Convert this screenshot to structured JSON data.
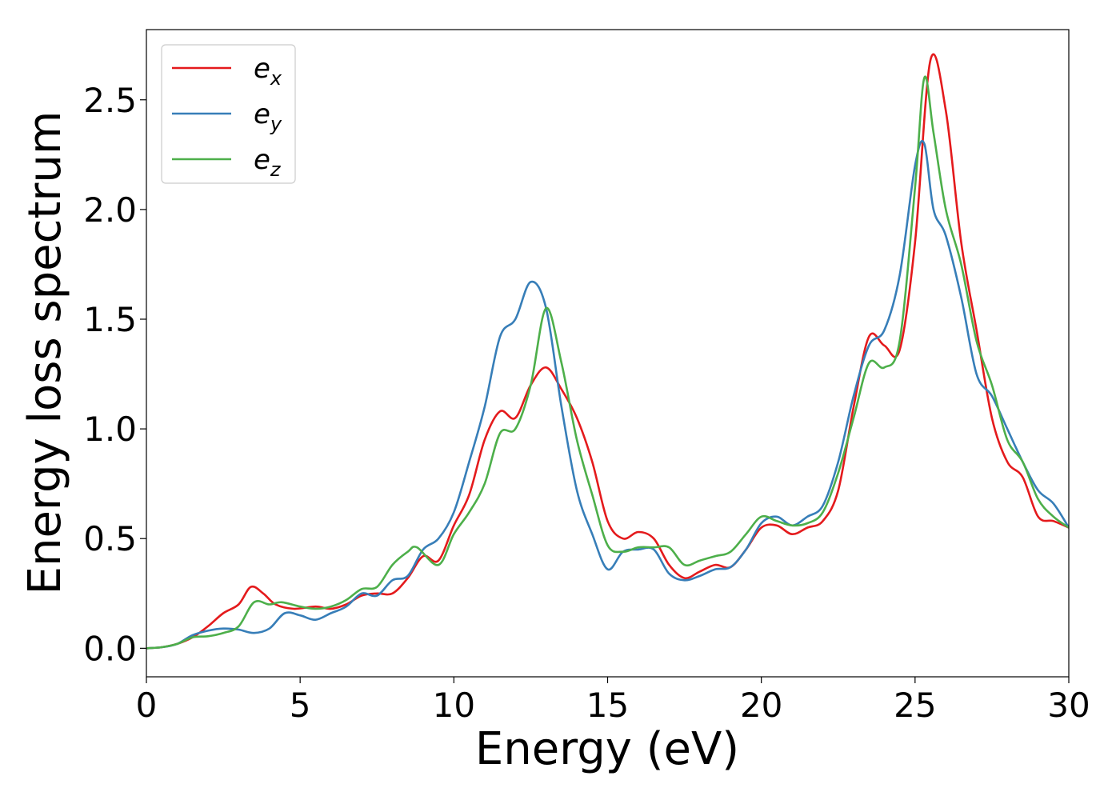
{
  "chart_data": {
    "type": "line",
    "xlabel": "Energy (eV)",
    "ylabel": "Energy loss spectrum",
    "xlim": [
      0,
      30
    ],
    "ylim": [
      -0.13,
      2.82
    ],
    "xticks": [
      0,
      5,
      10,
      15,
      20,
      25,
      30
    ],
    "xtick_labels": [
      "0",
      "5",
      "10",
      "15",
      "20",
      "25",
      "30"
    ],
    "yticks": [
      0.0,
      0.5,
      1.0,
      1.5,
      2.0,
      2.5
    ],
    "ytick_labels": [
      "0.0",
      "0.5",
      "1.0",
      "1.5",
      "2.0",
      "2.5"
    ],
    "grid": false,
    "legend_position": "upper-left",
    "series": [
      {
        "name": "e_x",
        "legend_base": "e",
        "legend_sub": "x",
        "color": "#e41a1c",
        "points": [
          [
            0,
            0.0
          ],
          [
            0.5,
            0.005
          ],
          [
            1,
            0.02
          ],
          [
            1.5,
            0.05
          ],
          [
            2,
            0.1
          ],
          [
            2.5,
            0.16
          ],
          [
            3,
            0.2
          ],
          [
            3.4,
            0.28
          ],
          [
            3.8,
            0.25
          ],
          [
            4.2,
            0.2
          ],
          [
            4.8,
            0.18
          ],
          [
            5.5,
            0.19
          ],
          [
            6,
            0.18
          ],
          [
            6.5,
            0.2
          ],
          [
            7,
            0.24
          ],
          [
            7.5,
            0.25
          ],
          [
            8,
            0.25
          ],
          [
            8.5,
            0.32
          ],
          [
            9,
            0.42
          ],
          [
            9.5,
            0.4
          ],
          [
            10,
            0.56
          ],
          [
            10.5,
            0.7
          ],
          [
            11,
            0.95
          ],
          [
            11.5,
            1.08
          ],
          [
            12,
            1.05
          ],
          [
            12.5,
            1.2
          ],
          [
            13,
            1.28
          ],
          [
            13.5,
            1.18
          ],
          [
            14,
            1.05
          ],
          [
            14.5,
            0.85
          ],
          [
            15,
            0.58
          ],
          [
            15.5,
            0.5
          ],
          [
            16,
            0.53
          ],
          [
            16.5,
            0.5
          ],
          [
            17,
            0.38
          ],
          [
            17.5,
            0.32
          ],
          [
            18,
            0.35
          ],
          [
            18.5,
            0.38
          ],
          [
            19,
            0.37
          ],
          [
            19.5,
            0.45
          ],
          [
            20,
            0.55
          ],
          [
            20.5,
            0.56
          ],
          [
            21,
            0.52
          ],
          [
            21.5,
            0.55
          ],
          [
            22,
            0.58
          ],
          [
            22.5,
            0.72
          ],
          [
            23,
            1.1
          ],
          [
            23.5,
            1.42
          ],
          [
            24,
            1.38
          ],
          [
            24.5,
            1.36
          ],
          [
            25,
            1.85
          ],
          [
            25.5,
            2.68
          ],
          [
            26,
            2.45
          ],
          [
            26.5,
            1.85
          ],
          [
            27,
            1.45
          ],
          [
            27.5,
            1.05
          ],
          [
            28,
            0.85
          ],
          [
            28.5,
            0.78
          ],
          [
            29,
            0.6
          ],
          [
            29.5,
            0.58
          ],
          [
            30,
            0.55
          ]
        ]
      },
      {
        "name": "e_y",
        "legend_base": "e",
        "legend_sub": "y",
        "color": "#377eb8",
        "points": [
          [
            0,
            0.0
          ],
          [
            0.5,
            0.005
          ],
          [
            1,
            0.02
          ],
          [
            1.5,
            0.06
          ],
          [
            2,
            0.08
          ],
          [
            2.5,
            0.09
          ],
          [
            3,
            0.085
          ],
          [
            3.5,
            0.07
          ],
          [
            4,
            0.09
          ],
          [
            4.5,
            0.16
          ],
          [
            5,
            0.15
          ],
          [
            5.5,
            0.13
          ],
          [
            6,
            0.16
          ],
          [
            6.5,
            0.19
          ],
          [
            7,
            0.25
          ],
          [
            7.5,
            0.24
          ],
          [
            8,
            0.31
          ],
          [
            8.5,
            0.33
          ],
          [
            9,
            0.45
          ],
          [
            9.5,
            0.5
          ],
          [
            10,
            0.62
          ],
          [
            10.5,
            0.85
          ],
          [
            11,
            1.1
          ],
          [
            11.5,
            1.42
          ],
          [
            12,
            1.5
          ],
          [
            12.5,
            1.67
          ],
          [
            13,
            1.55
          ],
          [
            13.5,
            1.1
          ],
          [
            14,
            0.72
          ],
          [
            14.5,
            0.52
          ],
          [
            15,
            0.36
          ],
          [
            15.5,
            0.44
          ],
          [
            16,
            0.45
          ],
          [
            16.5,
            0.45
          ],
          [
            17,
            0.34
          ],
          [
            17.5,
            0.31
          ],
          [
            18,
            0.33
          ],
          [
            18.5,
            0.36
          ],
          [
            19,
            0.37
          ],
          [
            19.5,
            0.45
          ],
          [
            20,
            0.57
          ],
          [
            20.5,
            0.6
          ],
          [
            21,
            0.56
          ],
          [
            21.5,
            0.6
          ],
          [
            22,
            0.65
          ],
          [
            22.5,
            0.85
          ],
          [
            23,
            1.15
          ],
          [
            23.5,
            1.38
          ],
          [
            24,
            1.45
          ],
          [
            24.5,
            1.7
          ],
          [
            25,
            2.2
          ],
          [
            25.3,
            2.3
          ],
          [
            25.6,
            2.0
          ],
          [
            26,
            1.88
          ],
          [
            26.5,
            1.6
          ],
          [
            27,
            1.25
          ],
          [
            27.5,
            1.15
          ],
          [
            28,
            1.0
          ],
          [
            28.5,
            0.85
          ],
          [
            29,
            0.72
          ],
          [
            29.5,
            0.66
          ],
          [
            30,
            0.55
          ]
        ]
      },
      {
        "name": "e_z",
        "legend_base": "e",
        "legend_sub": "z",
        "color": "#4daf4a",
        "points": [
          [
            0,
            0.0
          ],
          [
            0.5,
            0.005
          ],
          [
            1,
            0.02
          ],
          [
            1.5,
            0.05
          ],
          [
            2,
            0.055
          ],
          [
            2.5,
            0.07
          ],
          [
            3,
            0.1
          ],
          [
            3.5,
            0.21
          ],
          [
            4,
            0.2
          ],
          [
            4.4,
            0.21
          ],
          [
            5,
            0.19
          ],
          [
            5.5,
            0.18
          ],
          [
            6,
            0.19
          ],
          [
            6.5,
            0.22
          ],
          [
            7,
            0.27
          ],
          [
            7.5,
            0.28
          ],
          [
            8,
            0.38
          ],
          [
            8.5,
            0.44
          ],
          [
            8.8,
            0.46
          ],
          [
            9.5,
            0.38
          ],
          [
            10,
            0.52
          ],
          [
            10.5,
            0.62
          ],
          [
            11,
            0.75
          ],
          [
            11.5,
            0.98
          ],
          [
            12,
            1.0
          ],
          [
            12.5,
            1.2
          ],
          [
            13,
            1.55
          ],
          [
            13.5,
            1.3
          ],
          [
            14,
            0.95
          ],
          [
            14.5,
            0.7
          ],
          [
            15,
            0.47
          ],
          [
            15.5,
            0.44
          ],
          [
            16,
            0.46
          ],
          [
            16.5,
            0.46
          ],
          [
            17,
            0.46
          ],
          [
            17.5,
            0.38
          ],
          [
            18,
            0.4
          ],
          [
            18.5,
            0.42
          ],
          [
            19,
            0.44
          ],
          [
            19.5,
            0.52
          ],
          [
            20,
            0.6
          ],
          [
            20.5,
            0.58
          ],
          [
            21,
            0.56
          ],
          [
            21.5,
            0.57
          ],
          [
            22,
            0.62
          ],
          [
            22.5,
            0.8
          ],
          [
            23,
            1.05
          ],
          [
            23.5,
            1.3
          ],
          [
            24,
            1.28
          ],
          [
            24.5,
            1.4
          ],
          [
            25,
            2.1
          ],
          [
            25.3,
            2.6
          ],
          [
            25.6,
            2.35
          ],
          [
            26,
            2.0
          ],
          [
            26.5,
            1.75
          ],
          [
            27,
            1.4
          ],
          [
            27.5,
            1.2
          ],
          [
            28,
            0.95
          ],
          [
            28.5,
            0.85
          ],
          [
            29,
            0.68
          ],
          [
            29.5,
            0.6
          ],
          [
            30,
            0.55
          ]
        ]
      }
    ]
  }
}
